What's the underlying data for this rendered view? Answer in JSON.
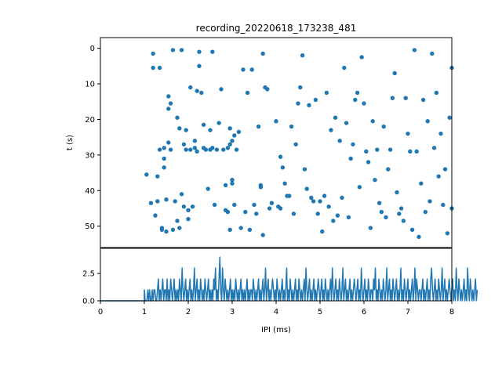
{
  "chart_data": [
    {
      "type": "scatter",
      "title": "recording_20220618_173238_481",
      "xlabel": "",
      "ylabel": "t (s)",
      "xlim": [
        0,
        8
      ],
      "ylim": [
        56,
        -3
      ],
      "y_ticks": [
        0,
        10,
        20,
        30,
        40,
        50
      ],
      "marker_color": "#1f77b4",
      "points": [
        [
          1.05,
          35.5
        ],
        [
          1.15,
          43.5
        ],
        [
          1.2,
          1.5
        ],
        [
          1.2,
          5.5
        ],
        [
          1.25,
          47
        ],
        [
          1.3,
          36
        ],
        [
          1.3,
          43
        ],
        [
          1.35,
          28.5
        ],
        [
          1.35,
          5.5
        ],
        [
          1.4,
          50.5
        ],
        [
          1.4,
          51
        ],
        [
          1.45,
          28
        ],
        [
          1.45,
          33.5
        ],
        [
          1.45,
          31
        ],
        [
          1.5,
          42.5
        ],
        [
          1.5,
          51.5
        ],
        [
          1.55,
          13.5
        ],
        [
          1.55,
          17
        ],
        [
          1.55,
          26.5
        ],
        [
          1.6,
          15.5
        ],
        [
          1.6,
          28.5
        ],
        [
          1.65,
          0.5
        ],
        [
          1.65,
          51
        ],
        [
          1.7,
          43
        ],
        [
          1.75,
          19.5
        ],
        [
          1.75,
          48.5
        ],
        [
          1.8,
          22.5
        ],
        [
          1.8,
          50.5
        ],
        [
          1.85,
          0.5
        ],
        [
          1.85,
          41
        ],
        [
          1.9,
          27
        ],
        [
          1.9,
          44.5
        ],
        [
          1.95,
          23
        ],
        [
          1.95,
          28.5
        ],
        [
          2.0,
          45.5
        ],
        [
          2.0,
          48
        ],
        [
          2.05,
          11
        ],
        [
          2.05,
          28.5
        ],
        [
          2.1,
          44.5
        ],
        [
          2.15,
          26
        ],
        [
          2.15,
          28
        ],
        [
          2.2,
          12
        ],
        [
          2.2,
          29
        ],
        [
          2.25,
          1
        ],
        [
          2.25,
          5
        ],
        [
          2.3,
          12.5
        ],
        [
          2.35,
          21.5
        ],
        [
          2.35,
          28
        ],
        [
          2.4,
          28.5
        ],
        [
          2.45,
          39.5
        ],
        [
          2.5,
          23
        ],
        [
          2.5,
          28.5
        ],
        [
          2.55,
          1
        ],
        [
          2.55,
          28
        ],
        [
          2.6,
          44
        ],
        [
          2.65,
          28.5
        ],
        [
          2.7,
          21
        ],
        [
          2.75,
          11.5
        ],
        [
          2.8,
          28.5
        ],
        [
          2.85,
          38.5
        ],
        [
          2.85,
          45.5
        ],
        [
          2.9,
          28
        ],
        [
          2.9,
          46
        ],
        [
          2.95,
          22.5
        ],
        [
          2.95,
          27
        ],
        [
          2.95,
          51
        ],
        [
          3.0,
          26
        ],
        [
          3.0,
          37
        ],
        [
          3.0,
          38
        ],
        [
          3.05,
          24.5
        ],
        [
          3.05,
          44
        ],
        [
          3.1,
          28.5
        ],
        [
          3.15,
          23.5
        ],
        [
          3.2,
          50.5
        ],
        [
          3.25,
          6
        ],
        [
          3.3,
          46
        ],
        [
          3.35,
          12.5
        ],
        [
          3.4,
          51
        ],
        [
          3.45,
          6
        ],
        [
          3.5,
          44
        ],
        [
          3.55,
          46.5
        ],
        [
          3.6,
          22
        ],
        [
          3.65,
          39
        ],
        [
          3.65,
          38.5
        ],
        [
          3.7,
          52.5
        ],
        [
          3.7,
          1.5
        ],
        [
          3.75,
          11
        ],
        [
          3.8,
          11.5
        ],
        [
          3.85,
          45
        ],
        [
          3.9,
          43.5
        ],
        [
          4.0,
          20.5
        ],
        [
          4.05,
          44.5
        ],
        [
          4.1,
          45
        ],
        [
          4.1,
          30.5
        ],
        [
          4.15,
          33.5
        ],
        [
          4.2,
          38
        ],
        [
          4.25,
          41.5
        ],
        [
          4.3,
          41.5
        ],
        [
          4.35,
          22
        ],
        [
          4.4,
          46.5
        ],
        [
          4.45,
          27
        ],
        [
          4.5,
          15.5
        ],
        [
          4.55,
          11
        ],
        [
          4.6,
          2
        ],
        [
          4.65,
          34
        ],
        [
          4.7,
          39.5
        ],
        [
          4.75,
          16
        ],
        [
          4.8,
          42
        ],
        [
          4.85,
          43
        ],
        [
          4.9,
          14.5
        ],
        [
          4.95,
          46.5
        ],
        [
          5.0,
          43
        ],
        [
          5.05,
          51.5
        ],
        [
          5.1,
          41.5
        ],
        [
          5.15,
          12.5
        ],
        [
          5.2,
          44.5
        ],
        [
          5.25,
          23
        ],
        [
          5.3,
          48.5
        ],
        [
          5.35,
          19.5
        ],
        [
          5.4,
          47
        ],
        [
          5.45,
          26
        ],
        [
          5.5,
          42
        ],
        [
          5.55,
          5.5
        ],
        [
          5.6,
          21
        ],
        [
          5.65,
          47.5
        ],
        [
          5.7,
          31
        ],
        [
          5.75,
          27
        ],
        [
          5.8,
          14.5
        ],
        [
          5.85,
          12.5
        ],
        [
          5.9,
          39
        ],
        [
          5.95,
          2.5
        ],
        [
          6.0,
          15.5
        ],
        [
          6.05,
          29
        ],
        [
          6.1,
          32
        ],
        [
          6.15,
          50.5
        ],
        [
          6.2,
          20.5
        ],
        [
          6.25,
          37
        ],
        [
          6.3,
          28.5
        ],
        [
          6.35,
          43.5
        ],
        [
          6.4,
          46
        ],
        [
          6.45,
          22
        ],
        [
          6.5,
          47.5
        ],
        [
          6.55,
          34
        ],
        [
          6.6,
          28.5
        ],
        [
          6.65,
          14
        ],
        [
          6.7,
          7
        ],
        [
          6.75,
          40.5
        ],
        [
          6.8,
          46.5
        ],
        [
          6.85,
          45
        ],
        [
          6.9,
          48.5
        ],
        [
          6.95,
          14
        ],
        [
          7.0,
          24
        ],
        [
          7.05,
          29
        ],
        [
          7.1,
          51
        ],
        [
          7.15,
          0.5
        ],
        [
          7.2,
          29
        ],
        [
          7.25,
          53
        ],
        [
          7.3,
          38
        ],
        [
          7.35,
          14.5
        ],
        [
          7.4,
          46
        ],
        [
          7.45,
          20.5
        ],
        [
          7.5,
          43
        ],
        [
          7.55,
          1.5
        ],
        [
          7.6,
          28
        ],
        [
          7.65,
          12.5
        ],
        [
          7.7,
          36
        ],
        [
          7.75,
          24
        ],
        [
          7.8,
          44
        ],
        [
          7.85,
          34
        ],
        [
          7.9,
          52
        ],
        [
          7.95,
          19.5
        ],
        [
          8.0,
          5.5
        ],
        [
          8.0,
          45
        ]
      ]
    },
    {
      "type": "line",
      "title": "",
      "xlabel": "IPI (ms)",
      "ylabel": "",
      "xlim": [
        0,
        8
      ],
      "ylim": [
        0,
        4.8
      ],
      "x_ticks": [
        0,
        1,
        2,
        3,
        4,
        5,
        6,
        7,
        8
      ],
      "y_ticks": [
        0.0,
        2.5
      ],
      "y_tick_labels": [
        "0.0",
        "2.5"
      ],
      "line_color": "#1f77b4",
      "x_start": 1.0,
      "x_step": 0.02,
      "values": [
        1,
        0,
        0,
        0,
        1,
        0,
        1,
        0,
        0,
        1,
        0,
        1,
        1,
        0,
        0,
        1,
        2,
        0,
        1,
        0,
        1,
        2,
        0,
        1,
        1,
        0,
        2,
        0,
        1,
        0,
        2,
        1,
        0,
        1,
        2,
        0,
        1,
        0,
        1,
        0,
        2,
        1,
        0,
        3,
        1,
        0,
        1,
        2,
        0,
        1,
        0,
        1,
        2,
        0,
        1,
        0,
        1,
        3,
        0,
        1,
        2,
        0,
        1,
        0,
        2,
        1,
        0,
        1,
        0,
        2,
        1,
        0,
        1,
        2,
        0,
        1,
        0,
        1,
        0,
        2,
        1,
        3,
        0,
        1,
        0,
        2,
        4,
        1,
        0,
        3,
        1,
        0,
        2,
        1,
        0,
        1,
        0,
        1,
        2,
        0,
        1,
        0,
        1,
        0,
        2,
        1,
        0,
        1,
        0,
        1,
        2,
        0,
        1,
        0,
        1,
        0,
        1,
        2,
        0,
        1,
        0,
        1,
        1,
        0,
        2,
        1,
        0,
        1,
        0,
        1,
        2,
        0,
        1,
        0,
        1,
        2,
        0,
        1,
        3,
        0,
        1,
        2,
        0,
        1,
        0,
        1,
        2,
        1,
        0,
        1,
        0,
        2,
        1,
        0,
        1,
        0,
        1,
        2,
        0,
        1,
        0,
        1,
        3,
        0,
        1,
        0,
        2,
        1,
        0,
        1,
        0,
        1,
        2,
        0,
        1,
        0,
        2,
        1,
        0,
        1,
        0,
        1,
        2,
        0,
        3,
        1,
        0,
        1,
        2,
        0,
        1,
        0,
        1,
        2,
        0,
        1,
        0,
        1,
        2,
        1,
        0,
        1,
        2,
        0,
        1,
        0,
        2,
        1,
        0,
        1,
        0,
        1,
        2,
        0,
        3,
        1,
        0,
        1,
        2,
        0,
        1,
        0,
        2,
        1,
        0,
        1,
        3,
        0,
        1,
        2,
        0,
        1,
        0,
        1,
        2,
        0,
        1,
        0,
        1,
        2,
        1,
        0,
        1,
        2,
        0,
        1,
        0,
        3,
        1,
        0,
        1,
        2,
        0,
        1,
        0,
        2,
        1,
        0,
        1,
        1,
        0,
        2,
        1,
        3,
        0,
        1,
        0,
        2,
        1,
        0,
        1,
        0,
        2,
        1,
        0,
        1,
        3,
        0,
        1,
        2,
        0,
        1,
        0,
        2,
        1,
        0,
        1,
        2,
        0,
        1,
        0,
        1,
        3,
        0,
        1,
        0,
        2,
        1,
        0,
        1,
        2,
        0,
        1,
        0,
        1,
        2,
        0,
        1,
        3,
        0,
        2,
        1,
        0,
        1,
        1,
        0,
        1,
        2,
        0,
        1,
        0,
        1,
        2,
        0,
        1,
        0,
        2,
        3,
        1,
        0,
        1,
        2,
        0,
        1,
        0,
        2,
        1,
        0,
        1,
        3,
        0,
        1,
        2,
        0,
        1,
        0,
        1,
        2,
        1,
        0,
        1,
        2,
        0,
        1,
        0,
        3,
        1,
        0,
        2,
        1,
        0,
        1,
        0,
        1,
        2,
        0,
        1,
        0,
        3,
        1,
        0,
        2,
        1,
        0,
        1,
        0,
        1,
        2,
        0,
        1
      ]
    }
  ]
}
